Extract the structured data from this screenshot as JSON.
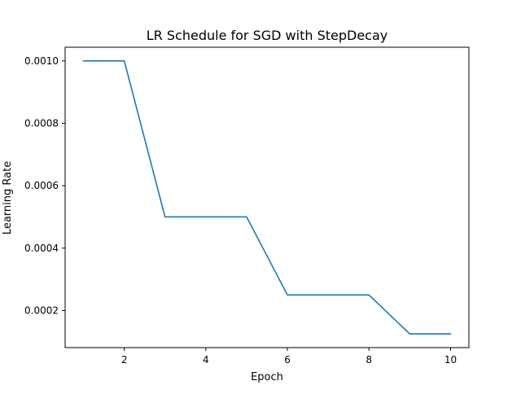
{
  "chart_data": {
    "type": "line",
    "title": "LR Schedule for SGD with StepDecay",
    "xlabel": "Epoch",
    "ylabel": "Learning Rate",
    "x": [
      1,
      2,
      3,
      4,
      5,
      6,
      7,
      8,
      9,
      10
    ],
    "series": [
      {
        "values": [
          0.001,
          0.001,
          0.0005,
          0.0005,
          0.0005,
          0.00025,
          0.00025,
          0.00025,
          0.000125,
          0.000125
        ]
      }
    ],
    "xlim": [
      0.55,
      10.45
    ],
    "ylim": [
      8.125e-05,
      0.00104375
    ],
    "xticks": [
      2,
      4,
      6,
      8,
      10
    ],
    "xtick_labels": [
      "2",
      "4",
      "6",
      "8",
      "10"
    ],
    "yticks": [
      0.0002,
      0.0004,
      0.0006,
      0.0008,
      0.001
    ],
    "ytick_labels": [
      "0.0002",
      "0.0004",
      "0.0006",
      "0.0008",
      "0.0010"
    ],
    "grid": false,
    "legend": "none",
    "colors": {
      "line": "#1f77b4",
      "axes": "#000000",
      "background": "#ffffff"
    }
  }
}
